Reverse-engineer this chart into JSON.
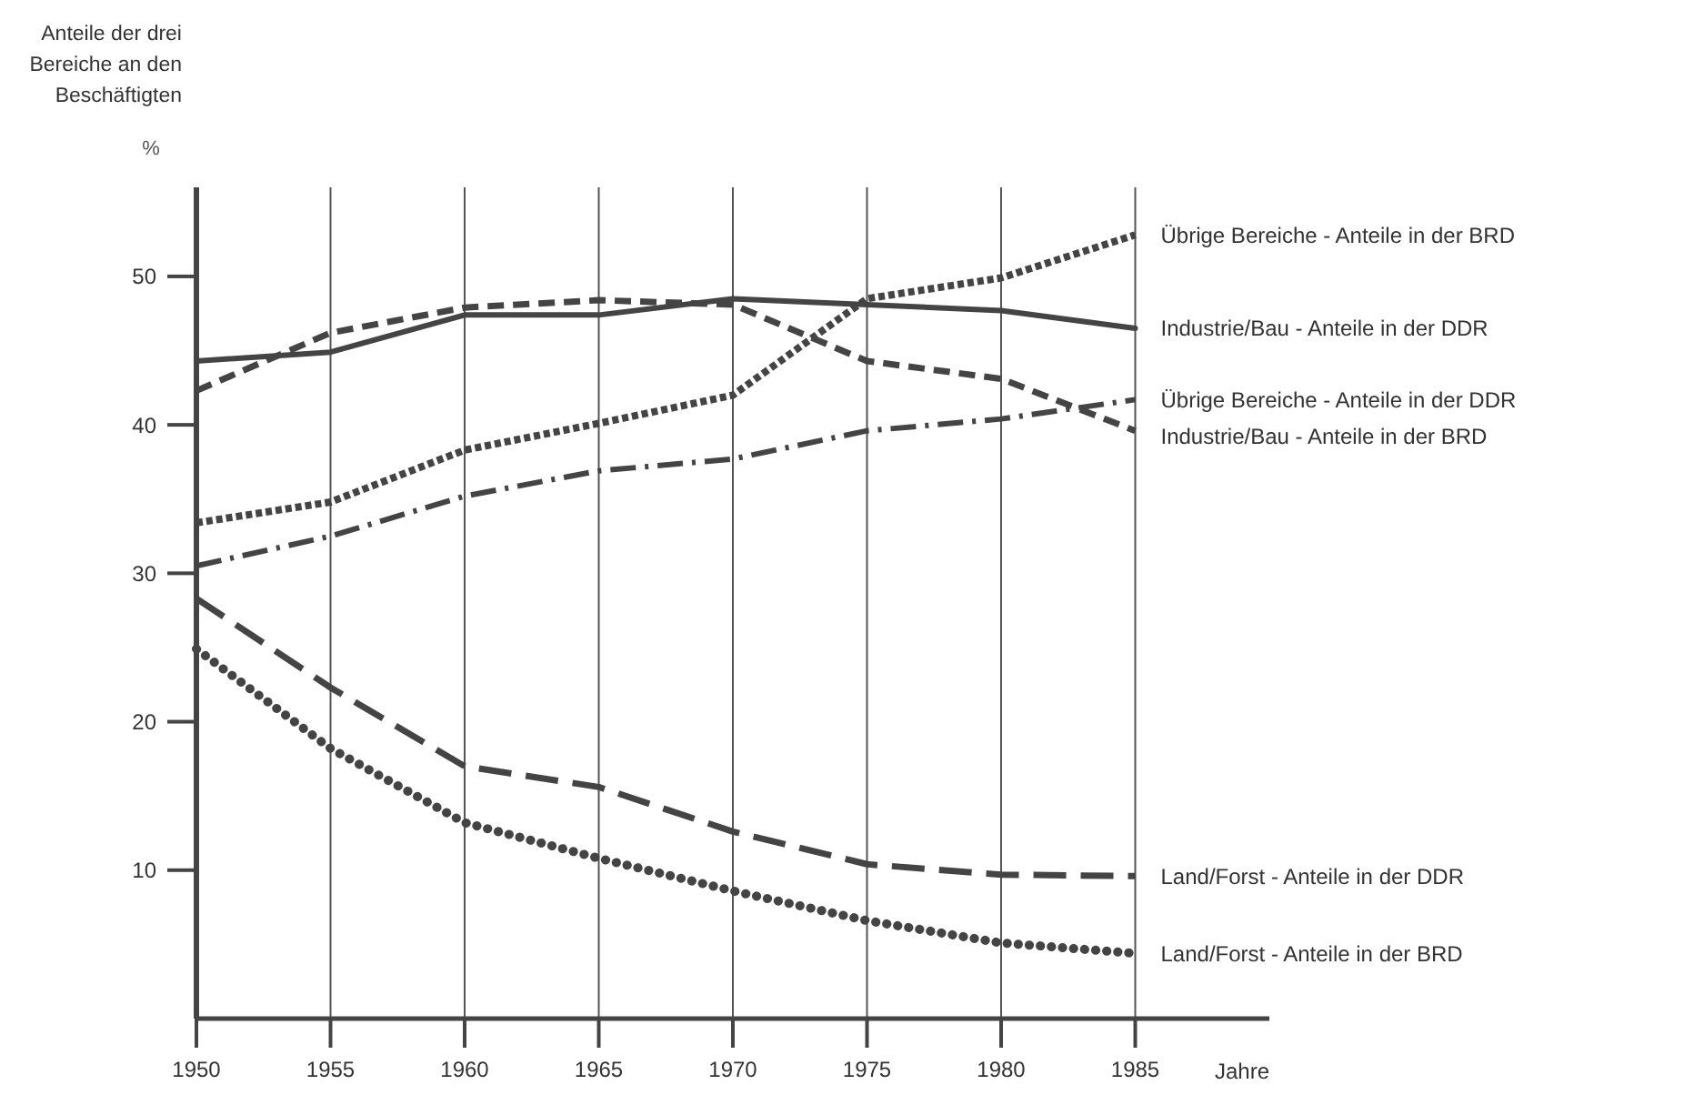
{
  "chart_data": {
    "type": "line",
    "ylabel": "Anteile der drei Bereiche an den Beschäftigten",
    "xlabel": "Jahre",
    "annotations": [
      "%"
    ],
    "x": [
      1950,
      1955,
      1960,
      1965,
      1970,
      1975,
      1980,
      1985
    ],
    "xlim": [
      1950,
      1990
    ],
    "xticks": [
      1950,
      1955,
      1960,
      1965,
      1970,
      1975,
      1980,
      1985
    ],
    "ylim": [
      0,
      56
    ],
    "yticks": [
      10,
      20,
      30,
      40,
      50
    ],
    "grid": "x",
    "legend": false,
    "series": [
      {
        "name": "Übrige Bereiche - Anteile in der BRD",
        "color": "#444444",
        "line_style": "dotted",
        "values": [
          33.4,
          34.8,
          38.3,
          40.1,
          42.0,
          48.5,
          49.9,
          52.8
        ]
      },
      {
        "name": "Industrie/Bau - Anteile in der DDR",
        "color": "#444444",
        "line_style": "solid",
        "values": [
          44.3,
          44.9,
          47.4,
          47.4,
          48.5,
          48.1,
          47.7,
          46.5
        ]
      },
      {
        "name": "Übrige Bereiche - Anteile in der DDR",
        "color": "#444444",
        "line_style": "dashdot",
        "values": [
          30.5,
          32.5,
          35.2,
          36.9,
          37.7,
          39.6,
          40.4,
          41.7
        ]
      },
      {
        "name": "Industrie/Bau - Anteile in der BRD",
        "color": "#444444",
        "line_style": "dashed",
        "values": [
          42.3,
          46.2,
          47.9,
          48.4,
          48.1,
          44.3,
          43.1,
          39.6
        ]
      },
      {
        "name": "Land/Forst - Anteile in der DDR",
        "color": "#444444",
        "line_style": "longdash",
        "values": [
          28.3,
          22.3,
          17.0,
          15.6,
          12.6,
          10.4,
          9.7,
          9.6
        ]
      },
      {
        "name": "Land/Forst - Anteile in der BRD",
        "color": "#444444",
        "line_style": "dots",
        "values": [
          24.9,
          18.2,
          13.2,
          10.8,
          8.6,
          6.6,
          5.1,
          4.4
        ]
      }
    ]
  }
}
